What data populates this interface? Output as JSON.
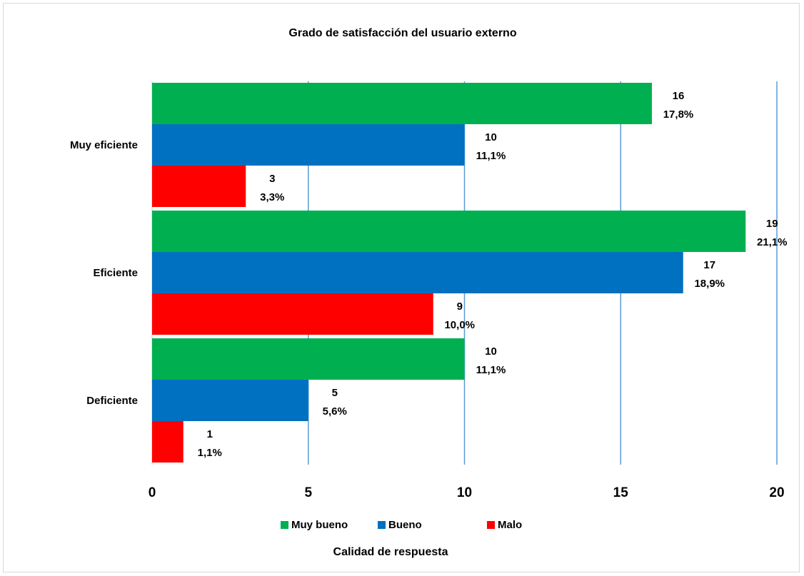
{
  "chart_data": {
    "type": "bar",
    "orientation": "horizontal",
    "title": "Grado de satisfacción del usuario externo",
    "xlabel": "Calidad de respuesta",
    "ylabel": "",
    "categories": [
      "Muy eficiente",
      "Eficiente",
      "Deficiente"
    ],
    "series": [
      {
        "name": "Muy bueno",
        "color": "#00b050",
        "values": [
          16,
          19,
          10
        ],
        "labels": [
          "17,8%",
          "21,1%",
          "11,1%"
        ]
      },
      {
        "name": "Bueno",
        "color": "#0070c0",
        "values": [
          10,
          17,
          5
        ],
        "labels": [
          "11,1%",
          "18,9%",
          "5,6%"
        ]
      },
      {
        "name": "Malo",
        "color": "#ff0000",
        "values": [
          3,
          9,
          1
        ],
        "labels": [
          "3,3%",
          "10,0%",
          "1,1%"
        ]
      }
    ],
    "xlim": [
      0,
      20
    ],
    "xticks": [
      "0",
      "5",
      "10",
      "15",
      "20"
    ],
    "grid": "vertical",
    "gridColor": "#5b9bd5",
    "legend": "bottom"
  }
}
